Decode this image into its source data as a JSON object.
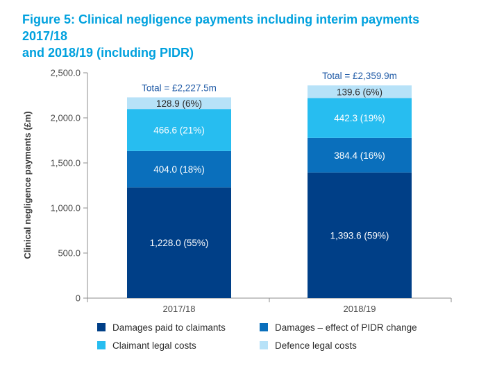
{
  "title_line1": "Figure 5: Clinical negligence payments including interim payments 2017/18",
  "title_line2": "and 2018/19 (including PIDR)",
  "chart_data": {
    "type": "bar",
    "stacked": true,
    "categories": [
      "2017/18",
      "2018/19"
    ],
    "ylabel": "Clinical negligence payments (£m)",
    "ylim": [
      0,
      2500
    ],
    "yticks": [
      "0",
      "500.0",
      "1,000.0",
      "1,500.0",
      "2,000.0",
      "2,500.0"
    ],
    "ytick_values": [
      0,
      500,
      1000,
      1500,
      2000,
      2500
    ],
    "grid": false,
    "legend_position": "bottom",
    "series": [
      {
        "name": "Damages paid to claimants",
        "color": "#003f87",
        "label_color": "#ffffff",
        "values": [
          1228.0,
          1393.6
        ],
        "labels": [
          "1,228.0 (55%)",
          "1,393.6 (59%)"
        ]
      },
      {
        "name": "Damages – effect of PIDR change",
        "color": "#0a6fbc",
        "label_color": "#ffffff",
        "values": [
          404.0,
          384.4
        ],
        "labels": [
          "404.0 (18%)",
          "384.4 (16%)"
        ]
      },
      {
        "name": "Claimant legal costs",
        "color": "#27bdf0",
        "label_color": "#ffffff",
        "values": [
          466.6,
          442.3
        ],
        "labels": [
          "466.6 (21%)",
          "442.3 (19%)"
        ]
      },
      {
        "name": "Defence legal costs",
        "color": "#b7e2f8",
        "label_color": "#2b2b2b",
        "values": [
          128.9,
          139.6
        ],
        "labels": [
          "128.9 (6%)",
          "139.6 (6%)"
        ]
      }
    ],
    "totals": [
      2227.5,
      2359.9
    ],
    "total_labels": [
      "Total = £2,227.5m",
      "Total = £2,359.9m"
    ]
  }
}
